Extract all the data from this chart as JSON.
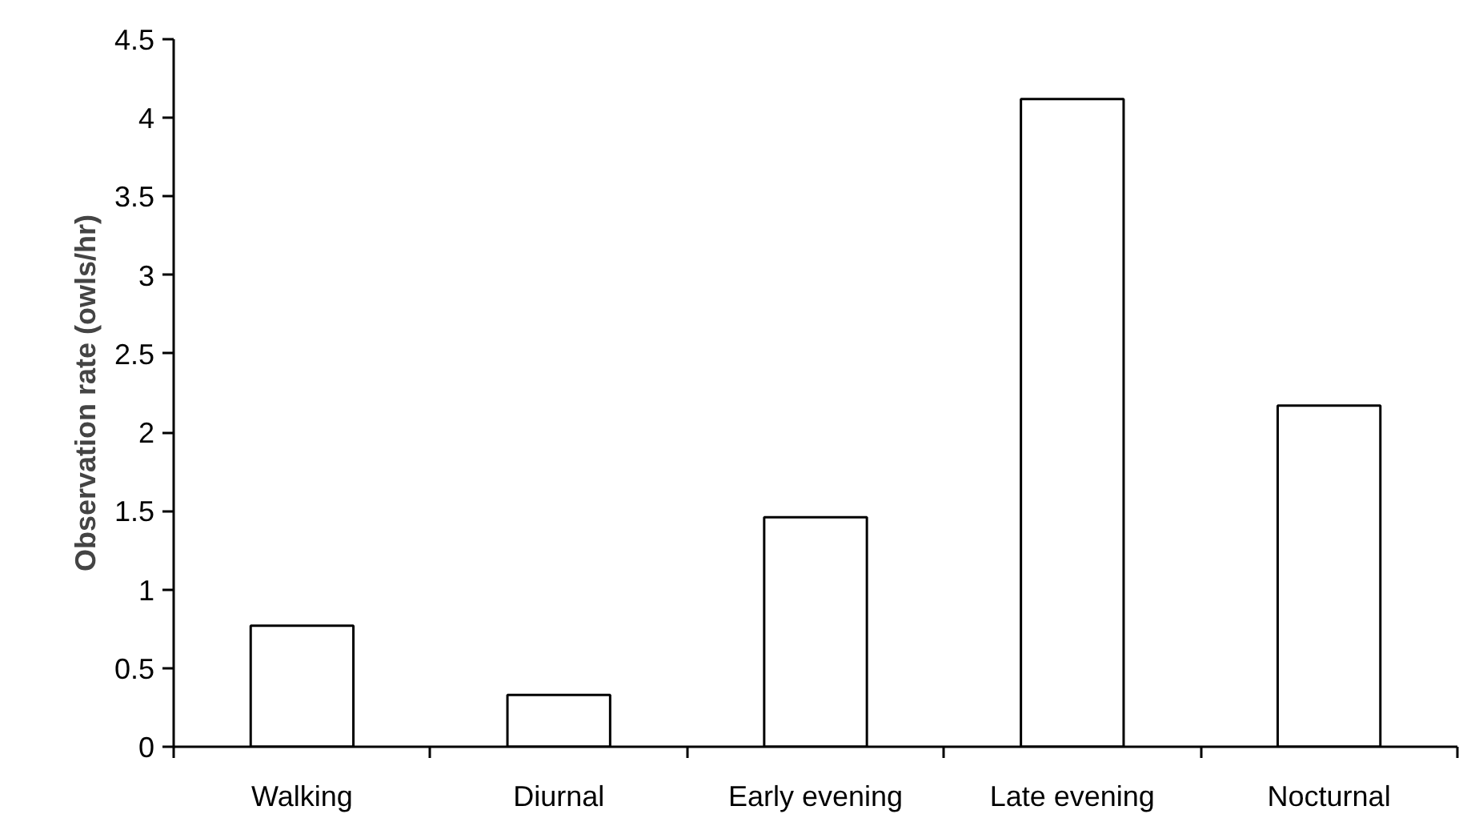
{
  "chart_data": {
    "type": "bar",
    "ylabel": "Observation rate (owls/hr)",
    "categories": [
      "Walking",
      "Diurnal",
      "Early evening",
      "Late evening",
      "Nocturnal"
    ],
    "values": [
      0.77,
      0.33,
      1.46,
      4.12,
      2.17
    ],
    "color": "#ffffff",
    "ylim": [
      0,
      4.5
    ],
    "yticks": [
      0,
      0.5,
      1,
      1.5,
      2,
      2.5,
      3,
      3.5,
      4,
      4.5
    ],
    "grid": false
  }
}
